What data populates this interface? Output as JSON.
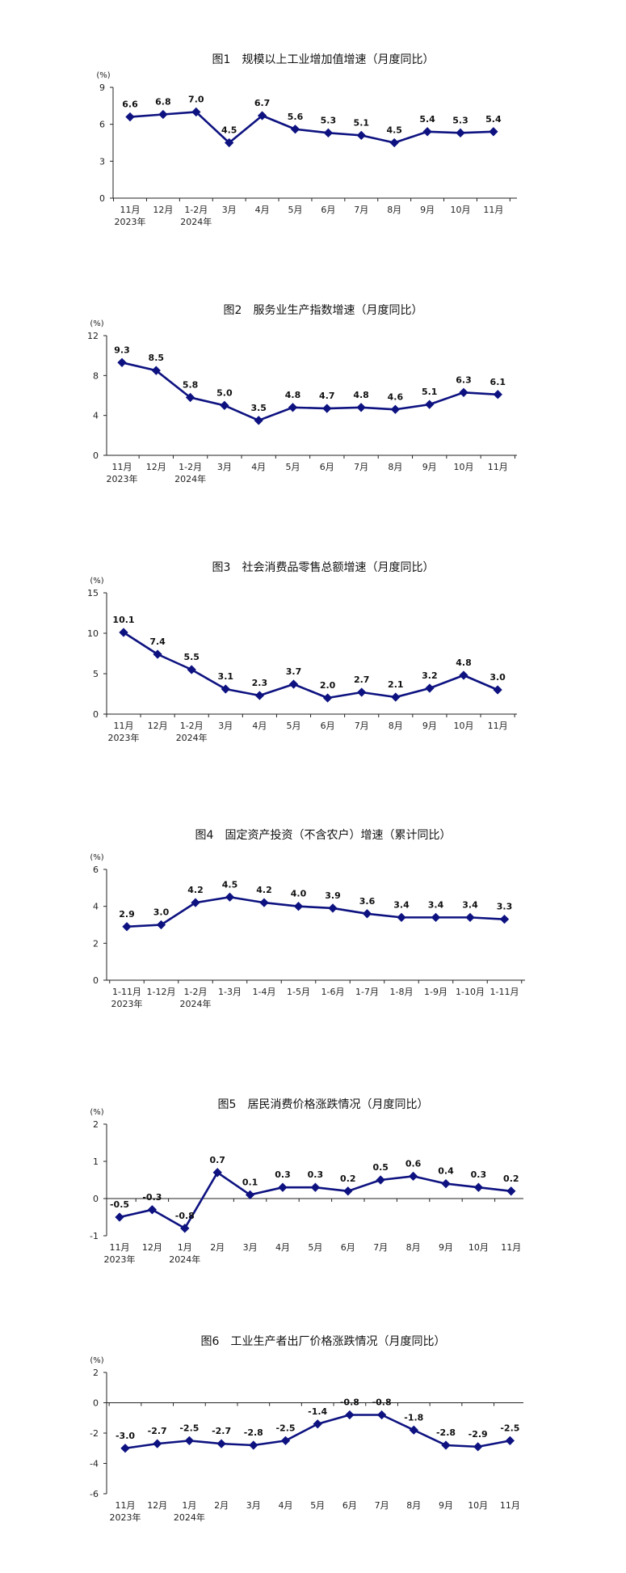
{
  "chart_data": [
    {
      "type": "line",
      "title": "图1　规模以上工业增加值增速（月度同比）",
      "unit": "(%)",
      "categories": [
        "11月",
        "12月",
        "1-2月",
        "3月",
        "4月",
        "5月",
        "6月",
        "7月",
        "8月",
        "9月",
        "10月",
        "11月"
      ],
      "sub_labels": [
        "2023年",
        "",
        "2024年",
        "",
        "",
        "",
        "",
        "",
        "",
        "",
        "",
        ""
      ],
      "values": [
        6.6,
        6.8,
        7.0,
        4.5,
        6.7,
        5.6,
        5.3,
        5.1,
        4.5,
        5.4,
        5.3,
        5.4
      ],
      "value_labels": [
        "6.6",
        "6.8",
        "7.0",
        "4.5",
        "6.7",
        "5.6",
        "5.3",
        "5.1",
        "4.5",
        "5.4",
        "5.3",
        "5.4"
      ],
      "ylim": [
        0,
        9
      ],
      "yticks": [
        0,
        3,
        6,
        9
      ],
      "color": "#0d1280"
    },
    {
      "type": "line",
      "title": "图2　服务业生产指数增速（月度同比）",
      "unit": "(%)",
      "categories": [
        "11月",
        "12月",
        "1-2月",
        "3月",
        "4月",
        "5月",
        "6月",
        "7月",
        "8月",
        "9月",
        "10月",
        "11月"
      ],
      "sub_labels": [
        "2023年",
        "",
        "2024年",
        "",
        "",
        "",
        "",
        "",
        "",
        "",
        "",
        ""
      ],
      "values": [
        9.3,
        8.5,
        5.8,
        5.0,
        3.5,
        4.8,
        4.7,
        4.8,
        4.6,
        5.1,
        6.3,
        6.1
      ],
      "value_labels": [
        "9.3",
        "8.5",
        "5.8",
        "5.0",
        "3.5",
        "4.8",
        "4.7",
        "4.8",
        "4.6",
        "5.1",
        "6.3",
        "6.1"
      ],
      "ylim": [
        0,
        12
      ],
      "yticks": [
        0,
        4,
        8,
        12
      ],
      "color": "#0d1280"
    },
    {
      "type": "line",
      "title": "图3　社会消费品零售总额增速（月度同比）",
      "unit": "(%)",
      "categories": [
        "11月",
        "12月",
        "1-2月",
        "3月",
        "4月",
        "5月",
        "6月",
        "7月",
        "8月",
        "9月",
        "10月",
        "11月"
      ],
      "sub_labels": [
        "2023年",
        "",
        "2024年",
        "",
        "",
        "",
        "",
        "",
        "",
        "",
        "",
        ""
      ],
      "values": [
        10.1,
        7.4,
        5.5,
        3.1,
        2.3,
        3.7,
        2.0,
        2.7,
        2.1,
        3.2,
        4.8,
        3.0
      ],
      "value_labels": [
        "10.1",
        "7.4",
        "5.5",
        "3.1",
        "2.3",
        "3.7",
        "2.0",
        "2.7",
        "2.1",
        "3.2",
        "4.8",
        "3.0"
      ],
      "ylim": [
        0,
        15
      ],
      "yticks": [
        0,
        5,
        10,
        15
      ],
      "color": "#0d1280"
    },
    {
      "type": "line",
      "title": "图4　固定资产投资（不含农户）增速（累计同比）",
      "unit": "(%)",
      "categories": [
        "1-11月",
        "1-12月",
        "1-2月",
        "1-3月",
        "1-4月",
        "1-5月",
        "1-6月",
        "1-7月",
        "1-8月",
        "1-9月",
        "1-10月",
        "1-11月"
      ],
      "sub_labels": [
        "2023年",
        "",
        "2024年",
        "",
        "",
        "",
        "",
        "",
        "",
        "",
        "",
        ""
      ],
      "values": [
        2.9,
        3.0,
        4.2,
        4.5,
        4.2,
        4.0,
        3.9,
        3.6,
        3.4,
        3.4,
        3.4,
        3.3
      ],
      "value_labels": [
        "2.9",
        "3.0",
        "4.2",
        "4.5",
        "4.2",
        "4.0",
        "3.9",
        "3.6",
        "3.4",
        "3.4",
        "3.4",
        "3.3"
      ],
      "ylim": [
        0,
        6
      ],
      "yticks": [
        0,
        2,
        4,
        6
      ],
      "color": "#0d1280"
    },
    {
      "type": "line",
      "title": "图5　居民消费价格涨跌情况（月度同比）",
      "unit": "(%)",
      "categories": [
        "11月",
        "12月",
        "1月",
        "2月",
        "3月",
        "4月",
        "5月",
        "6月",
        "7月",
        "8月",
        "9月",
        "10月",
        "11月"
      ],
      "sub_labels": [
        "2023年",
        "",
        "2024年",
        "",
        "",
        "",
        "",
        "",
        "",
        "",
        "",
        "",
        ""
      ],
      "values": [
        -0.5,
        -0.3,
        -0.8,
        0.7,
        0.1,
        0.3,
        0.3,
        0.2,
        0.5,
        0.6,
        0.4,
        0.3,
        0.2
      ],
      "value_labels": [
        "-0.5",
        "-0.3",
        "-0.8",
        "0.7",
        "0.1",
        "0.3",
        "0.3",
        "0.2",
        "0.5",
        "0.6",
        "0.4",
        "0.3",
        "0.2"
      ],
      "ylim": [
        -1,
        2
      ],
      "yticks": [
        -1,
        0,
        1,
        2
      ],
      "color": "#0d1280"
    },
    {
      "type": "line",
      "title": "图6　工业生产者出厂价格涨跌情况（月度同比）",
      "unit": "(%)",
      "categories": [
        "11月",
        "12月",
        "1月",
        "2月",
        "3月",
        "4月",
        "5月",
        "6月",
        "7月",
        "8月",
        "9月",
        "10月",
        "11月"
      ],
      "sub_labels": [
        "2023年",
        "",
        "2024年",
        "",
        "",
        "",
        "",
        "",
        "",
        "",
        "",
        "",
        ""
      ],
      "values": [
        -3.0,
        -2.7,
        -2.5,
        -2.7,
        -2.8,
        -2.5,
        -1.4,
        -0.8,
        -0.8,
        -1.8,
        -2.8,
        -2.9,
        -2.5
      ],
      "value_labels": [
        "-3.0",
        "-2.7",
        "-2.5",
        "-2.7",
        "-2.8",
        "-2.5",
        "-1.4",
        "-0.8",
        "-0.8",
        "-1.8",
        "-2.8",
        "-2.9",
        "-2.5"
      ],
      "ylim": [
        -6,
        2
      ],
      "yticks": [
        -6,
        -4,
        -2,
        0,
        2
      ],
      "color": "#0d1280"
    }
  ]
}
